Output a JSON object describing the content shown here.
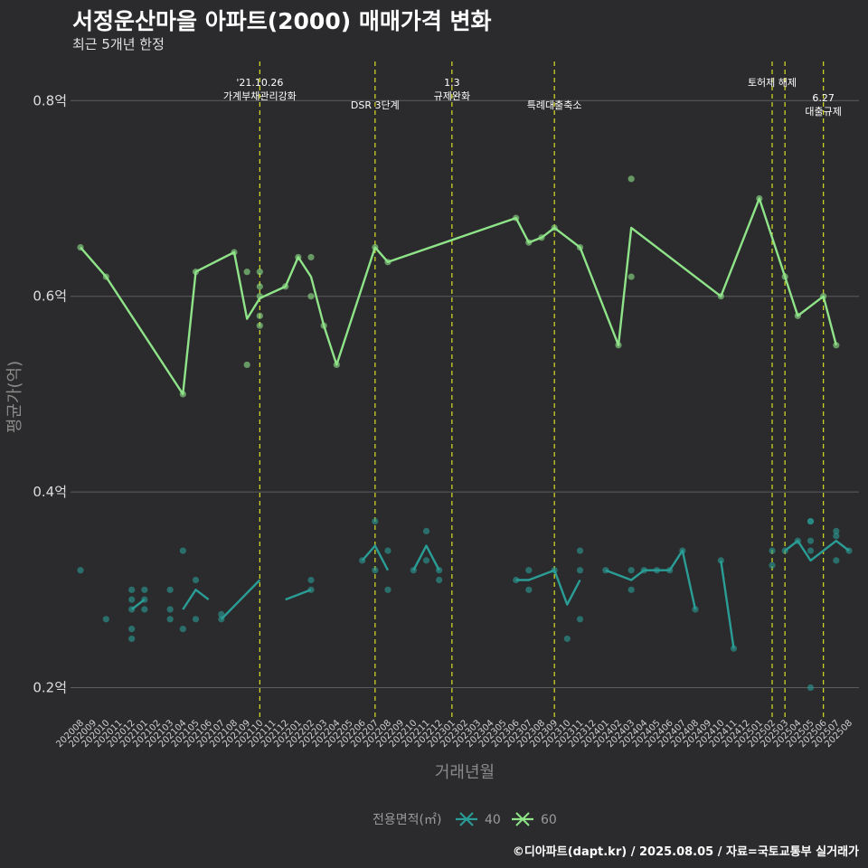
{
  "title": "서정운산마을 아파트(2000) 매매가격 변화",
  "subtitle": "최근 5개년 한정",
  "caption": "©디아파트(dapt.kr) / 2025.08.05 / 자료=국토교통부 실거래가",
  "chart_data": {
    "type": "line",
    "xlabel": "거래년월",
    "ylabel": "평균가(억)",
    "ylim": [
      0.17,
      0.84
    ],
    "yticks": [
      {
        "value": 0.2,
        "label": "0.2억"
      },
      {
        "value": 0.4,
        "label": "0.4억"
      },
      {
        "value": 0.6,
        "label": "0.6억"
      },
      {
        "value": 0.8,
        "label": "0.8억"
      }
    ],
    "grid": true,
    "legend": {
      "title": "전용면적(㎡)",
      "position": "bottom"
    },
    "x": [
      "202008",
      "202009",
      "202010",
      "202011",
      "202012",
      "202101",
      "202102",
      "202103",
      "202104",
      "202105",
      "202106",
      "202107",
      "202108",
      "202109",
      "202110",
      "202111",
      "202112",
      "202201",
      "202202",
      "202203",
      "202204",
      "202205",
      "202206",
      "202207",
      "202208",
      "202209",
      "202210",
      "202211",
      "202212",
      "202301",
      "202302",
      "202303",
      "202304",
      "202305",
      "202306",
      "202307",
      "202308",
      "202309",
      "202310",
      "202311",
      "202312",
      "202401",
      "202402",
      "202403",
      "202404",
      "202405",
      "202406",
      "202407",
      "202408",
      "202409",
      "202410",
      "202411",
      "202412",
      "202501",
      "202502",
      "202503",
      "202504",
      "202505",
      "202506",
      "202507",
      "202508"
    ],
    "series": [
      {
        "name": "40",
        "color": "#2a9d96",
        "line": [
          [
            [
              4,
              0.28
            ],
            [
              5,
              0.29
            ]
          ],
          [
            [
              8,
              0.28
            ],
            [
              9,
              0.3
            ],
            [
              10,
              0.29
            ]
          ],
          [
            [
              11,
              0.27
            ],
            [
              14,
              0.31
            ]
          ],
          [
            [
              16,
              0.29
            ],
            [
              18,
              0.3
            ]
          ],
          [
            [
              22,
              0.33
            ],
            [
              23,
              0.345
            ],
            [
              24,
              0.32
            ]
          ],
          [
            [
              26,
              0.32
            ],
            [
              27,
              0.345
            ],
            [
              28,
              0.32
            ]
          ],
          [
            [
              34,
              0.31
            ],
            [
              35,
              0.31
            ],
            [
              37,
              0.32
            ],
            [
              38,
              0.285
            ],
            [
              39,
              0.31
            ]
          ],
          [
            [
              41,
              0.32
            ],
            [
              43,
              0.31
            ],
            [
              44,
              0.32
            ],
            [
              46,
              0.32
            ],
            [
              47,
              0.34
            ],
            [
              48,
              0.28
            ]
          ],
          [
            [
              50,
              0.33
            ],
            [
              51,
              0.24
            ]
          ],
          [
            [
              55,
              0.34
            ],
            [
              56,
              0.35
            ],
            [
              57,
              0.33
            ],
            [
              59,
              0.35
            ],
            [
              60,
              0.34
            ]
          ]
        ],
        "points": [
          [
            0,
            0.32
          ],
          [
            2,
            0.27
          ],
          [
            4,
            0.3
          ],
          [
            4,
            0.29
          ],
          [
            4,
            0.28
          ],
          [
            4,
            0.26
          ],
          [
            4,
            0.25
          ],
          [
            5,
            0.3
          ],
          [
            5,
            0.29
          ],
          [
            5,
            0.28
          ],
          [
            7,
            0.3
          ],
          [
            7,
            0.28
          ],
          [
            7,
            0.27
          ],
          [
            8,
            0.34
          ],
          [
            8,
            0.26
          ],
          [
            9,
            0.31
          ],
          [
            9,
            0.27
          ],
          [
            11,
            0.275
          ],
          [
            11,
            0.27
          ],
          [
            18,
            0.31
          ],
          [
            18,
            0.3
          ],
          [
            22,
            0.33
          ],
          [
            23,
            0.37
          ],
          [
            23,
            0.32
          ],
          [
            24,
            0.34
          ],
          [
            24,
            0.3
          ],
          [
            26,
            0.32
          ],
          [
            27,
            0.36
          ],
          [
            27,
            0.33
          ],
          [
            28,
            0.32
          ],
          [
            28,
            0.31
          ],
          [
            34,
            0.31
          ],
          [
            35,
            0.32
          ],
          [
            35,
            0.3
          ],
          [
            37,
            0.32
          ],
          [
            38,
            0.25
          ],
          [
            39,
            0.34
          ],
          [
            39,
            0.32
          ],
          [
            39,
            0.27
          ],
          [
            41,
            0.32
          ],
          [
            43,
            0.32
          ],
          [
            43,
            0.3
          ],
          [
            44,
            0.32
          ],
          [
            45,
            0.32
          ],
          [
            46,
            0.32
          ],
          [
            47,
            0.34
          ],
          [
            48,
            0.28
          ],
          [
            50,
            0.33
          ],
          [
            51,
            0.24
          ],
          [
            54,
            0.34
          ],
          [
            54,
            0.325
          ],
          [
            55,
            0.34
          ],
          [
            56,
            0.35
          ],
          [
            57,
            0.37
          ],
          [
            57,
            0.37
          ],
          [
            57,
            0.35
          ],
          [
            57,
            0.34
          ],
          [
            57,
            0.2
          ],
          [
            59,
            0.36
          ],
          [
            59,
            0.355
          ],
          [
            59,
            0.33
          ],
          [
            60,
            0.34
          ]
        ]
      },
      {
        "name": "60",
        "color": "#8fe388",
        "line": [
          [
            [
              0,
              0.65
            ],
            [
              2,
              0.62
            ],
            [
              8,
              0.5
            ],
            [
              9,
              0.625
            ],
            [
              12,
              0.645
            ],
            [
              13,
              0.577
            ],
            [
              14,
              0.598
            ],
            [
              16,
              0.61
            ],
            [
              17,
              0.64
            ],
            [
              18,
              0.62
            ],
            [
              19,
              0.57
            ],
            [
              20,
              0.53
            ],
            [
              23,
              0.65
            ],
            [
              24,
              0.635
            ],
            [
              34,
              0.68
            ],
            [
              35,
              0.655
            ],
            [
              36,
              0.66
            ],
            [
              37,
              0.67
            ],
            [
              39,
              0.65
            ],
            [
              42,
              0.55
            ],
            [
              43,
              0.67
            ],
            [
              50,
              0.6
            ],
            [
              53,
              0.7
            ],
            [
              55,
              0.62
            ],
            [
              56,
              0.58
            ],
            [
              58,
              0.6
            ],
            [
              59,
              0.55
            ]
          ]
        ],
        "points": [
          [
            0,
            0.65
          ],
          [
            2,
            0.62
          ],
          [
            8,
            0.5
          ],
          [
            9,
            0.625
          ],
          [
            12,
            0.645
          ],
          [
            13,
            0.625
          ],
          [
            13,
            0.53
          ],
          [
            14,
            0.625
          ],
          [
            14,
            0.61
          ],
          [
            14,
            0.6
          ],
          [
            14,
            0.58
          ],
          [
            14,
            0.57
          ],
          [
            16,
            0.61
          ],
          [
            17,
            0.64
          ],
          [
            18,
            0.64
          ],
          [
            18,
            0.6
          ],
          [
            19,
            0.57
          ],
          [
            20,
            0.53
          ],
          [
            23,
            0.65
          ],
          [
            24,
            0.635
          ],
          [
            34,
            0.68
          ],
          [
            35,
            0.655
          ],
          [
            36,
            0.66
          ],
          [
            37,
            0.67
          ],
          [
            39,
            0.65
          ],
          [
            42,
            0.55
          ],
          [
            43,
            0.72
          ],
          [
            43,
            0.62
          ],
          [
            50,
            0.6
          ],
          [
            53,
            0.7
          ],
          [
            55,
            0.62
          ],
          [
            56,
            0.58
          ],
          [
            58,
            0.6
          ],
          [
            59,
            0.55
          ]
        ]
      }
    ],
    "annotations": [
      {
        "x": 14.0,
        "lines": [
          "'21.10.26",
          "가계부채관리강화"
        ],
        "row": 0
      },
      {
        "x": 23.0,
        "lines": [
          "DSR 3단계"
        ],
        "row": 1
      },
      {
        "x": 29.0,
        "lines": [
          "1.3",
          "규제완화"
        ],
        "row": 0
      },
      {
        "x": 37.0,
        "lines": [
          "특례대출축소"
        ],
        "row": 1
      },
      {
        "x": 54.0,
        "lines": [
          "토허제 해제"
        ],
        "row": 0
      },
      {
        "x": 55.0,
        "lines": [],
        "row": 0
      },
      {
        "x": 58.0,
        "lines": [
          "6.27",
          "대출규제"
        ],
        "row": 2
      }
    ]
  }
}
